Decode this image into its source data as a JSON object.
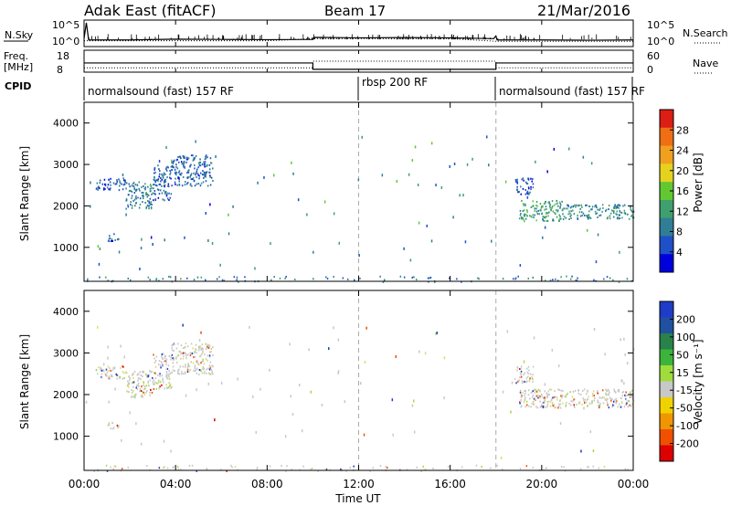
{
  "header": {
    "title": "Adak East (fitACF)",
    "beam": "Beam 17",
    "date": "21/Mar/2016"
  },
  "colors": {
    "power_scale": [
      "#0000dd",
      "#1e50c8",
      "#2f7e96",
      "#3f9f6e",
      "#62c832",
      "#e6d21e",
      "#f0a01e",
      "#f06e14",
      "#dc1e14"
    ],
    "velocity_scale": [
      "#dc0000",
      "#f05000",
      "#f09600",
      "#f0d200",
      "#c8c8c8",
      "#a0dc3c",
      "#3cb43c",
      "#28824a",
      "#2050a0",
      "#1e3cc8"
    ]
  },
  "chart_data": [
    {
      "type": "line",
      "title": "Adak East (fitACF)",
      "panel": "noise",
      "xlim": [
        "00:00",
        "24:00"
      ],
      "left_label": "N.Sky",
      "right_label": "N.Search",
      "left_ticks": [
        "10^5",
        "10^0"
      ],
      "right_ticks": [
        "10^5",
        "10^0"
      ],
      "series": [
        {
          "name": "N.Sky",
          "x": [
            0,
            0.1,
            0.2,
            2,
            4,
            6,
            8,
            10,
            10.05,
            12,
            14,
            16,
            17.9,
            18,
            18.05,
            20,
            22,
            24
          ],
          "y": [
            0.3,
            0.9,
            0.25,
            0.25,
            0.28,
            0.27,
            0.26,
            0.27,
            0.35,
            0.33,
            0.34,
            0.33,
            0.3,
            0.4,
            0.25,
            0.25,
            0.24,
            0.25
          ]
        },
        {
          "name": "N.Search",
          "x": [
            0,
            4,
            8,
            10,
            12,
            16,
            18,
            20,
            24
          ],
          "y": [
            0.22,
            0.22,
            0.22,
            0.3,
            0.3,
            0.3,
            0.2,
            0.2,
            0.2
          ]
        }
      ]
    },
    {
      "type": "line",
      "panel": "frequency",
      "left_label": "Freq.",
      "left_unit": "[MHz]",
      "right_label": "Nave",
      "left_ticks": [
        "18",
        "8"
      ],
      "right_ticks": [
        "60",
        "0"
      ],
      "series": [
        {
          "name": "Freq.",
          "x": [
            0,
            10,
            10,
            18,
            18,
            24
          ],
          "y": [
            12.2,
            12.2,
            9.3,
            9.3,
            12.2,
            12.2
          ]
        },
        {
          "name": "Nave",
          "x": [
            0,
            10,
            10,
            18,
            18,
            24
          ],
          "y": [
            12,
            12,
            30,
            30,
            12,
            12
          ]
        }
      ]
    },
    {
      "type": "table",
      "panel": "cpid",
      "label": "CPID",
      "segments": [
        {
          "text": "normalsound (fast) 157 RF",
          "start": 0,
          "end": 12
        },
        {
          "text": "rbsp 200 RF",
          "start": 12,
          "end": 18
        },
        {
          "text": "normalsound (fast) 157 RF",
          "start": 18,
          "end": 24
        }
      ]
    },
    {
      "type": "heatmap",
      "panel": "power",
      "ylabel": "Slant Range [km]",
      "ylim": [
        180,
        4500
      ],
      "xlim": [
        0,
        24
      ],
      "yticks": [
        1000,
        2000,
        3000,
        4000
      ],
      "colorbar": {
        "label": "Power [dB]",
        "range": [
          0,
          32
        ],
        "ticks": [
          "28",
          "24",
          "20",
          "16",
          "12",
          "8",
          "4"
        ]
      },
      "regions": [
        {
          "t0": 0.5,
          "t1": 1.8,
          "r0": 2400,
          "r1": 2700,
          "v": 6
        },
        {
          "t0": 1.8,
          "t1": 3.0,
          "r0": 1950,
          "r1": 2600,
          "v": 9
        },
        {
          "t0": 3.0,
          "t1": 3.8,
          "r0": 2150,
          "r1": 3000,
          "v": 7
        },
        {
          "t0": 3.8,
          "t1": 5.6,
          "r0": 2500,
          "r1": 3250,
          "v": 7
        },
        {
          "t0": 1.0,
          "t1": 1.5,
          "r0": 1150,
          "r1": 1350,
          "v": 6
        },
        {
          "t0": 18.8,
          "t1": 19.6,
          "r0": 2300,
          "r1": 2700,
          "v": 6
        },
        {
          "t0": 19.0,
          "t1": 21.0,
          "r0": 1650,
          "r1": 2150,
          "v": 12
        },
        {
          "t0": 21.0,
          "t1": 24.0,
          "r0": 1700,
          "r1": 2050,
          "v": 10
        },
        {
          "t0": 0,
          "t1": 24,
          "r0": 180,
          "r1": 320,
          "v": 8
        }
      ]
    },
    {
      "type": "heatmap",
      "panel": "velocity",
      "xlabel": "Time UT",
      "ylabel": "Slant Range [km]",
      "ylim": [
        180,
        4500
      ],
      "xlim": [
        0,
        24
      ],
      "yticks": [
        1000,
        2000,
        3000,
        4000
      ],
      "xticks": [
        "00:00",
        "04:00",
        "08:00",
        "12:00",
        "16:00",
        "20:00",
        "00:00"
      ],
      "colorbar": {
        "label": "Velocity [m s⁻¹]",
        "ticks": [
          "200",
          "100",
          "50",
          "15",
          "-15",
          "-50",
          "-100",
          "-200"
        ]
      },
      "regions": [
        {
          "t0": 0.5,
          "t1": 1.8,
          "r0": 2400,
          "r1": 2700,
          "v": 0
        },
        {
          "t0": 1.8,
          "t1": 3.0,
          "r0": 1950,
          "r1": 2600,
          "v": 0
        },
        {
          "t0": 3.0,
          "t1": 3.8,
          "r0": 2150,
          "r1": 3000,
          "v": 0
        },
        {
          "t0": 3.8,
          "t1": 5.6,
          "r0": 2500,
          "r1": 3250,
          "v": 0
        },
        {
          "t0": 1.0,
          "t1": 1.5,
          "r0": 1150,
          "r1": 1350,
          "v": 0
        },
        {
          "t0": 18.8,
          "t1": 19.6,
          "r0": 2300,
          "r1": 2700,
          "v": 0
        },
        {
          "t0": 19.0,
          "t1": 24.0,
          "r0": 1700,
          "r1": 2150,
          "v": 0
        },
        {
          "t0": 0,
          "t1": 24,
          "r0": 180,
          "r1": 320,
          "v": 0
        }
      ]
    }
  ]
}
